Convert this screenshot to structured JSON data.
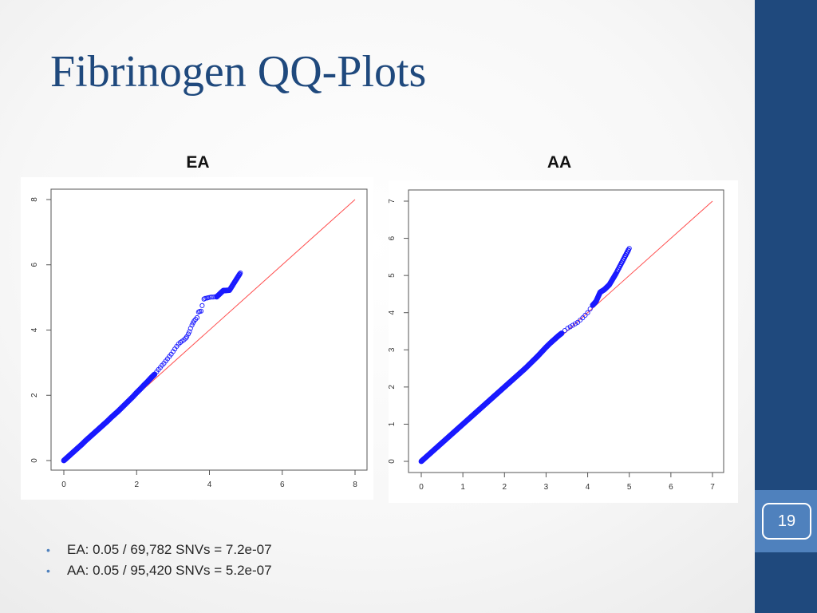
{
  "slide": {
    "title": "Fibrinogen QQ-Plots",
    "page_number": "19",
    "colors": {
      "sidebar": "#1f497d",
      "accent": "#4f81bd",
      "title": "#1f497d"
    },
    "bullets": [
      "EA: 0.05 / 69,782 SNVs = 7.2e-07",
      "AA: 0.05 / 95,420 SNVs = 5.2e-07"
    ]
  },
  "chart_data": [
    {
      "type": "scatter",
      "title": "EA",
      "xlabel": "",
      "ylabel": "",
      "xlim": [
        0,
        8
      ],
      "ylim": [
        0,
        8
      ],
      "x_ticks": [
        "0",
        "2",
        "4",
        "6",
        "8"
      ],
      "y_ticks": [
        "0",
        "2",
        "4",
        "6",
        "8"
      ],
      "reference_line": {
        "from": [
          0,
          0
        ],
        "to": [
          8,
          8
        ],
        "color": "#ff4d4d"
      },
      "point_color": "#1a1aff",
      "series": [
        {
          "x": [
            0.0,
            0.1,
            0.2,
            0.3,
            0.4,
            0.5,
            0.6,
            0.7,
            0.8,
            0.9,
            1.0,
            1.1,
            1.2,
            1.3,
            1.4,
            1.5,
            1.6,
            1.7,
            1.8,
            1.9,
            2.0,
            2.1,
            2.2,
            2.3,
            2.4,
            2.5,
            2.55,
            2.6,
            2.65,
            2.7,
            2.75,
            2.8,
            2.85,
            2.9,
            2.95,
            3.0,
            3.05,
            3.1,
            3.15,
            3.2,
            3.25,
            3.3,
            3.35,
            3.38,
            3.42,
            3.45,
            3.48,
            3.52,
            3.55,
            3.58,
            3.62,
            3.66,
            3.7,
            3.73,
            3.77,
            3.8,
            3.85,
            3.88,
            3.93,
            3.96,
            4.0,
            4.05,
            4.1,
            4.15,
            4.2,
            4.38,
            4.55,
            4.85
          ],
          "y": [
            0.0,
            0.1,
            0.2,
            0.3,
            0.4,
            0.5,
            0.61,
            0.71,
            0.81,
            0.91,
            1.01,
            1.11,
            1.21,
            1.32,
            1.42,
            1.52,
            1.63,
            1.74,
            1.85,
            1.96,
            2.08,
            2.19,
            2.31,
            2.42,
            2.54,
            2.65,
            2.72,
            2.79,
            2.85,
            2.92,
            2.98,
            3.05,
            3.12,
            3.19,
            3.26,
            3.34,
            3.42,
            3.5,
            3.57,
            3.62,
            3.66,
            3.7,
            3.75,
            3.8,
            3.88,
            3.95,
            4.05,
            4.15,
            4.22,
            4.28,
            4.33,
            4.38,
            4.55,
            4.57,
            4.58,
            4.75,
            4.95,
            4.97,
            4.98,
            4.99,
            5.0,
            5.01,
            5.01,
            5.02,
            5.02,
            5.21,
            5.22,
            5.75
          ]
        }
      ]
    },
    {
      "type": "scatter",
      "title": "AA",
      "xlabel": "",
      "ylabel": "",
      "xlim": [
        0,
        7
      ],
      "ylim": [
        0,
        7
      ],
      "x_ticks": [
        "0",
        "1",
        "2",
        "3",
        "4",
        "5",
        "6",
        "7"
      ],
      "y_ticks": [
        "0",
        "1",
        "2",
        "3",
        "4",
        "5",
        "6",
        "7"
      ],
      "reference_line": {
        "from": [
          0,
          0
        ],
        "to": [
          7,
          7
        ],
        "color": "#ff4d4d"
      },
      "point_color": "#1a1aff",
      "series": [
        {
          "x": [
            0.0,
            0.1,
            0.2,
            0.3,
            0.4,
            0.5,
            0.6,
            0.7,
            0.8,
            0.9,
            1.0,
            1.1,
            1.2,
            1.3,
            1.4,
            1.5,
            1.6,
            1.7,
            1.8,
            1.9,
            2.0,
            2.1,
            2.2,
            2.3,
            2.4,
            2.5,
            2.6,
            2.7,
            2.8,
            2.9,
            3.0,
            3.1,
            3.2,
            3.3,
            3.38,
            3.45,
            3.52,
            3.58,
            3.64,
            3.7,
            3.76,
            3.82,
            3.88,
            3.94,
            4.0,
            4.06,
            4.12,
            4.2,
            4.3,
            4.4,
            4.52,
            4.68,
            5.0
          ],
          "y": [
            0.0,
            0.1,
            0.2,
            0.3,
            0.4,
            0.5,
            0.6,
            0.7,
            0.8,
            0.9,
            1.0,
            1.1,
            1.2,
            1.3,
            1.4,
            1.5,
            1.6,
            1.7,
            1.8,
            1.9,
            2.0,
            2.1,
            2.2,
            2.3,
            2.4,
            2.5,
            2.61,
            2.72,
            2.83,
            2.95,
            3.07,
            3.18,
            3.28,
            3.38,
            3.45,
            3.52,
            3.58,
            3.62,
            3.66,
            3.7,
            3.74,
            3.8,
            3.86,
            3.93,
            4.0,
            4.1,
            4.2,
            4.3,
            4.55,
            4.62,
            4.75,
            5.05,
            5.73
          ]
        }
      ]
    }
  ]
}
